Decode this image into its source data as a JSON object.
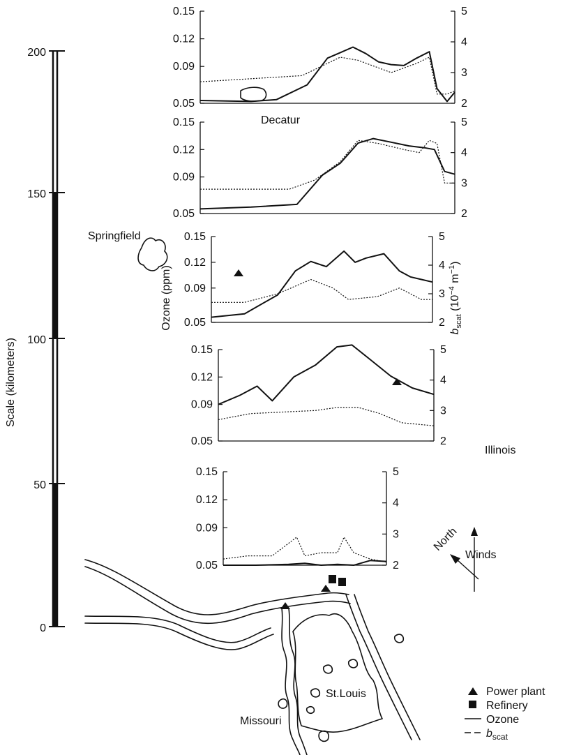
{
  "scale_bar": {
    "label": "Scale (kilometers)",
    "ticks": [
      "200",
      "150",
      "100",
      "50",
      "0"
    ],
    "values": [
      200,
      150,
      100,
      50,
      0
    ]
  },
  "shared_axes": {
    "ozone_label": "Ozone (ppm)",
    "bscat_label_main": "b",
    "bscat_label_sub": "scat",
    "bscat_label_units": "(10",
    "bscat_label_exp1": "−4",
    "bscat_label_m": " m",
    "bscat_label_exp2": "−1",
    "bscat_label_close": ")"
  },
  "map_labels": {
    "decatur": "Decatur",
    "springfield": "Springfield",
    "illinois": "Illinois",
    "st_louis": "St.Louis",
    "missouri": "Missouri",
    "north": "North",
    "winds": "Winds"
  },
  "legend": {
    "power_plant": "Power plant",
    "refinery": "Refinery",
    "ozone": "Ozone",
    "bscat_main": "b",
    "bscat_sub": "scat"
  },
  "chart_data": [
    {
      "type": "line",
      "y_left_ticks": [
        "0.15",
        "0.12",
        "0.09",
        "0.05"
      ],
      "y_right_ticks": [
        "5",
        "4",
        "3",
        "2"
      ],
      "ylim_ozone": [
        0.05,
        0.15
      ],
      "ylim_bscat": [
        2,
        5
      ],
      "x_domain": [
        0,
        1
      ],
      "series": [
        {
          "key": "ozone",
          "style": "solid",
          "x": [
            0.0,
            0.2,
            0.3,
            0.42,
            0.5,
            0.55,
            0.6,
            0.65,
            0.7,
            0.75,
            0.8,
            0.85,
            0.9,
            0.93,
            0.97,
            1.0
          ],
          "y": [
            0.053,
            0.052,
            0.054,
            0.07,
            0.099,
            0.105,
            0.111,
            0.104,
            0.095,
            0.092,
            0.091,
            0.099,
            0.106,
            0.066,
            0.052,
            0.062
          ]
        },
        {
          "key": "bscat",
          "style": "dotted",
          "x": [
            0.0,
            0.2,
            0.4,
            0.5,
            0.55,
            0.62,
            0.75,
            0.85,
            0.9,
            0.93,
            0.97,
            1.0
          ],
          "y": [
            2.7,
            2.8,
            2.9,
            3.3,
            3.5,
            3.4,
            3.0,
            3.3,
            3.5,
            2.3,
            2.3,
            2.4
          ]
        }
      ]
    },
    {
      "type": "line",
      "y_left_ticks": [
        "0.15",
        "0.12",
        "0.09",
        "0.05"
      ],
      "y_right_ticks": [
        "5",
        "4",
        "3",
        "2"
      ],
      "ylim_ozone": [
        0.05,
        0.15
      ],
      "ylim_bscat": [
        2,
        5
      ],
      "x_domain": [
        0,
        1
      ],
      "series": [
        {
          "key": "ozone",
          "style": "solid",
          "x": [
            0.0,
            0.2,
            0.38,
            0.48,
            0.55,
            0.62,
            0.68,
            0.75,
            0.82,
            0.88,
            0.92,
            0.96,
            1.0
          ],
          "y": [
            0.055,
            0.057,
            0.06,
            0.092,
            0.105,
            0.127,
            0.132,
            0.128,
            0.124,
            0.122,
            0.12,
            0.096,
            0.093
          ]
        },
        {
          "key": "bscat",
          "style": "dotted",
          "x": [
            0.0,
            0.2,
            0.35,
            0.45,
            0.55,
            0.62,
            0.7,
            0.8,
            0.86,
            0.9,
            0.93,
            0.96,
            1.0
          ],
          "y": [
            2.8,
            2.8,
            2.8,
            3.1,
            3.7,
            4.4,
            4.3,
            4.1,
            4.0,
            4.4,
            4.3,
            3.0,
            3.0
          ]
        }
      ]
    },
    {
      "type": "line",
      "y_left_ticks": [
        "0.15",
        "0.12",
        "0.09",
        "0.05"
      ],
      "y_right_ticks": [
        "5",
        "4",
        "3",
        "2"
      ],
      "ylim_ozone": [
        0.05,
        0.15
      ],
      "ylim_bscat": [
        2,
        5
      ],
      "x_domain": [
        0,
        1
      ],
      "series": [
        {
          "key": "ozone",
          "style": "solid",
          "x": [
            0.0,
            0.15,
            0.3,
            0.38,
            0.45,
            0.52,
            0.6,
            0.65,
            0.7,
            0.78,
            0.85,
            0.9,
            0.95,
            1.0
          ],
          "y": [
            0.056,
            0.06,
            0.082,
            0.11,
            0.121,
            0.115,
            0.133,
            0.12,
            0.125,
            0.13,
            0.11,
            0.103,
            0.1,
            0.097
          ]
        },
        {
          "key": "bscat",
          "style": "dotted",
          "x": [
            0.0,
            0.15,
            0.3,
            0.45,
            0.55,
            0.62,
            0.75,
            0.85,
            0.95,
            1.0
          ],
          "y": [
            2.7,
            2.7,
            3.0,
            3.5,
            3.2,
            2.8,
            2.9,
            3.2,
            2.8,
            2.8
          ]
        }
      ]
    },
    {
      "type": "line",
      "y_left_ticks": [
        "0.15",
        "0.12",
        "0.09",
        "0.05"
      ],
      "y_right_ticks": [
        "5",
        "4",
        "3",
        "2"
      ],
      "ylim_ozone": [
        0.05,
        0.15
      ],
      "ylim_bscat": [
        2,
        5
      ],
      "x_domain": [
        0,
        1
      ],
      "series": [
        {
          "key": "ozone",
          "style": "solid",
          "x": [
            0.0,
            0.1,
            0.18,
            0.25,
            0.35,
            0.45,
            0.55,
            0.62,
            0.7,
            0.8,
            0.9,
            1.0
          ],
          "y": [
            0.09,
            0.1,
            0.11,
            0.094,
            0.12,
            0.133,
            0.153,
            0.155,
            0.14,
            0.121,
            0.108,
            0.101
          ]
        },
        {
          "key": "bscat",
          "style": "dotted",
          "x": [
            0.0,
            0.15,
            0.3,
            0.45,
            0.55,
            0.65,
            0.75,
            0.85,
            1.0
          ],
          "y": [
            2.7,
            2.9,
            2.95,
            3.0,
            3.1,
            3.1,
            2.9,
            2.6,
            2.5
          ]
        }
      ]
    },
    {
      "type": "line",
      "y_left_ticks": [
        "0.15",
        "0.12",
        "0.09",
        "0.05"
      ],
      "y_right_ticks": [
        "5",
        "4",
        "3",
        "2"
      ],
      "ylim_ozone": [
        0.05,
        0.15
      ],
      "ylim_bscat": [
        2,
        5
      ],
      "x_domain": [
        0,
        1
      ],
      "series": [
        {
          "key": "ozone",
          "style": "solid",
          "x": [
            0.0,
            0.2,
            0.4,
            0.5,
            0.6,
            0.7,
            0.8,
            0.9,
            1.0
          ],
          "y": [
            0.05,
            0.05,
            0.051,
            0.052,
            0.05,
            0.051,
            0.05,
            0.055,
            0.054
          ]
        },
        {
          "key": "bscat",
          "style": "dotted",
          "x": [
            0.0,
            0.15,
            0.3,
            0.45,
            0.5,
            0.6,
            0.7,
            0.74,
            0.8,
            0.9,
            1.0
          ],
          "y": [
            2.2,
            2.3,
            2.3,
            2.9,
            2.3,
            2.4,
            2.4,
            2.9,
            2.4,
            2.2,
            2.1
          ]
        }
      ]
    }
  ]
}
